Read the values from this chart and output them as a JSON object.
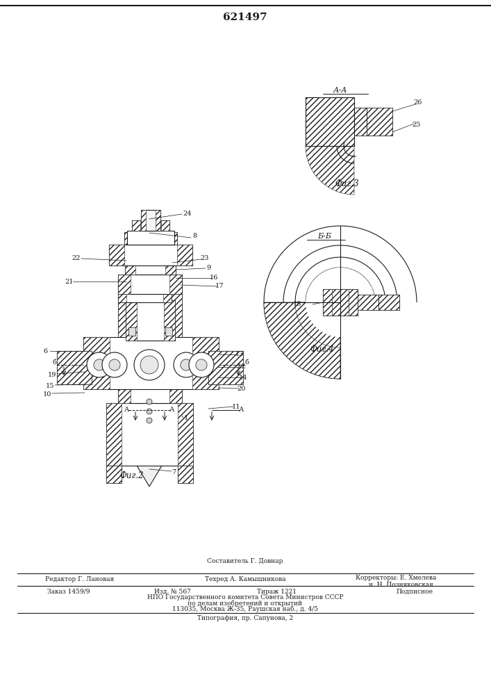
{
  "patent_number": "621497",
  "fig2_caption": "Фиг.2",
  "fig3_caption": "Фиг.3",
  "fig4_caption": "Фиг.4",
  "section_AA": "А-А",
  "section_BB": "Б-Б",
  "bg_color": "#ffffff",
  "line_color": "#1a1a1a",
  "footer_fs": 6.5,
  "caption_fs": 8.5,
  "patent_fs": 11,
  "label_fs": 7
}
